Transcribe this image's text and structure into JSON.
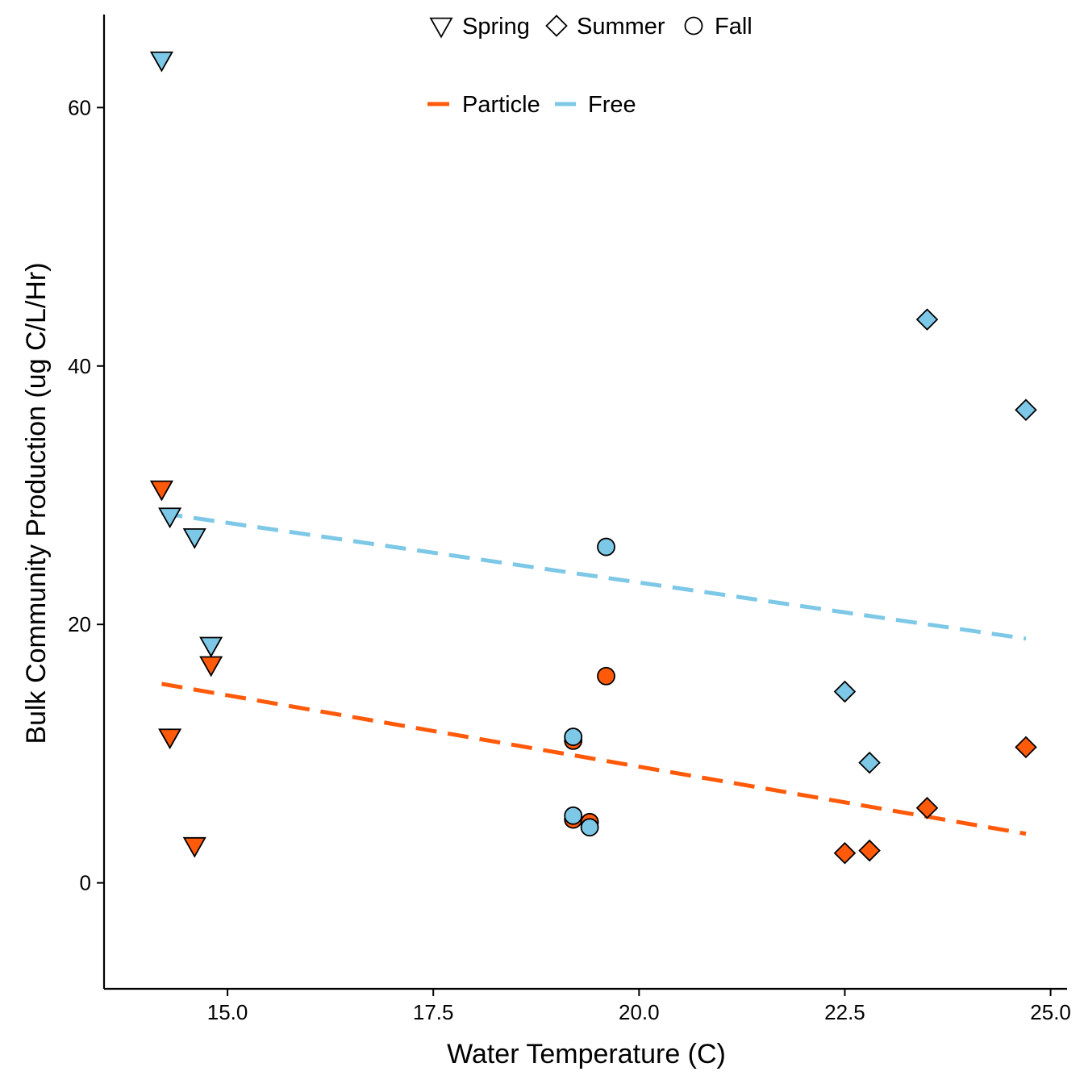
{
  "chart_data": {
    "type": "scatter",
    "xlabel": "Water Temperature (C)",
    "ylabel": "Bulk Community Production (ug C/L/Hr)",
    "xlim": [
      13.5,
      25.2
    ],
    "ylim": [
      -8.2,
      67.2
    ],
    "x_ticks": [
      15.0,
      17.5,
      20.0,
      22.5,
      25.0
    ],
    "x_tick_labels": [
      "15.0",
      "17.5",
      "20.0",
      "22.5",
      "25.0"
    ],
    "y_ticks": [
      0,
      20,
      40,
      60
    ],
    "y_tick_labels": [
      "0",
      "20",
      "40",
      "60"
    ],
    "grid": false,
    "legend_position": "top",
    "shape_legend": [
      {
        "shape": "triangle-down",
        "label": "Spring"
      },
      {
        "shape": "diamond",
        "label": "Summer"
      },
      {
        "shape": "circle",
        "label": "Fall"
      }
    ],
    "line_legend": [
      {
        "label": "Particle",
        "color": "#FF5A0A"
      },
      {
        "label": "Free",
        "color": "#7DC8E6"
      }
    ],
    "series": [
      {
        "name": "Particle",
        "color": "#FF5A0A",
        "points": [
          {
            "x": 14.2,
            "y": 30.5,
            "season": "Spring"
          },
          {
            "x": 14.3,
            "y": 11.3,
            "season": "Spring"
          },
          {
            "x": 14.6,
            "y": 2.9,
            "season": "Spring"
          },
          {
            "x": 14.8,
            "y": 16.9,
            "season": "Spring"
          },
          {
            "x": 19.2,
            "y": 11.0,
            "season": "Fall"
          },
          {
            "x": 19.2,
            "y": 4.9,
            "season": "Fall"
          },
          {
            "x": 19.4,
            "y": 4.7,
            "season": "Fall"
          },
          {
            "x": 19.6,
            "y": 16.0,
            "season": "Fall"
          },
          {
            "x": 22.5,
            "y": 2.3,
            "season": "Summer"
          },
          {
            "x": 22.8,
            "y": 2.5,
            "season": "Summer"
          },
          {
            "x": 23.5,
            "y": 5.8,
            "season": "Summer"
          },
          {
            "x": 24.7,
            "y": 10.5,
            "season": "Summer"
          }
        ],
        "trend": {
          "x": [
            14.2,
            24.7
          ],
          "y": [
            15.4,
            3.8
          ]
        }
      },
      {
        "name": "Free",
        "color": "#7DC8E6",
        "points": [
          {
            "x": 14.2,
            "y": 63.7,
            "season": "Spring"
          },
          {
            "x": 14.3,
            "y": 28.4,
            "season": "Spring"
          },
          {
            "x": 14.6,
            "y": 26.8,
            "season": "Spring"
          },
          {
            "x": 14.8,
            "y": 18.4,
            "season": "Spring"
          },
          {
            "x": 19.2,
            "y": 11.3,
            "season": "Fall"
          },
          {
            "x": 19.2,
            "y": 5.2,
            "season": "Fall"
          },
          {
            "x": 19.4,
            "y": 4.3,
            "season": "Fall"
          },
          {
            "x": 19.6,
            "y": 26.0,
            "season": "Fall"
          },
          {
            "x": 22.5,
            "y": 14.8,
            "season": "Summer"
          },
          {
            "x": 22.8,
            "y": 9.3,
            "season": "Summer"
          },
          {
            "x": 23.5,
            "y": 43.6,
            "season": "Summer"
          },
          {
            "x": 24.7,
            "y": 36.6,
            "season": "Summer"
          }
        ],
        "trend": {
          "x": [
            14.2,
            24.7
          ],
          "y": [
            28.6,
            18.9
          ]
        }
      }
    ]
  }
}
